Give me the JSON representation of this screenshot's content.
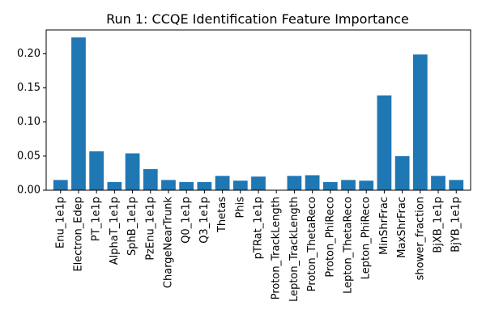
{
  "chart_data": {
    "type": "bar",
    "title": "Run 1: CCQE Identification Feature Importance",
    "xlabel": "",
    "ylabel": "",
    "ylim": [
      0,
      0.235
    ],
    "yticks": [
      "0.00",
      "0.05",
      "0.10",
      "0.15",
      "0.20"
    ],
    "bar_color": "#1f77b4",
    "grid": false,
    "categories": [
      "Enu_1e1p",
      "Electron_Edep",
      "PT_1e1p",
      "AlphaT_1e1p",
      "SphB_1e1p",
      "PzEnu_1e1p",
      "ChargeNearTrunk",
      "Q0_1e1p",
      "Q3_1e1p",
      "Thetas",
      "Phis",
      "pTRat_1e1p",
      "Proton_TrackLength",
      "Lepton_TrackLength",
      "Proton_ThetaReco",
      "Proton_PhiReco",
      "Lepton_ThetaReco",
      "Lepton_PhiReco",
      "MinShrFrac",
      "MaxShrFrac",
      "shower_fraction",
      "BjXB_1e1p",
      "BjYB_1e1p"
    ],
    "values": [
      0.015,
      0.224,
      0.057,
      0.012,
      0.054,
      0.031,
      0.015,
      0.012,
      0.012,
      0.021,
      0.014,
      0.02,
      0.0,
      0.021,
      0.022,
      0.012,
      0.015,
      0.014,
      0.139,
      0.05,
      0.199,
      0.021,
      0.015
    ]
  }
}
